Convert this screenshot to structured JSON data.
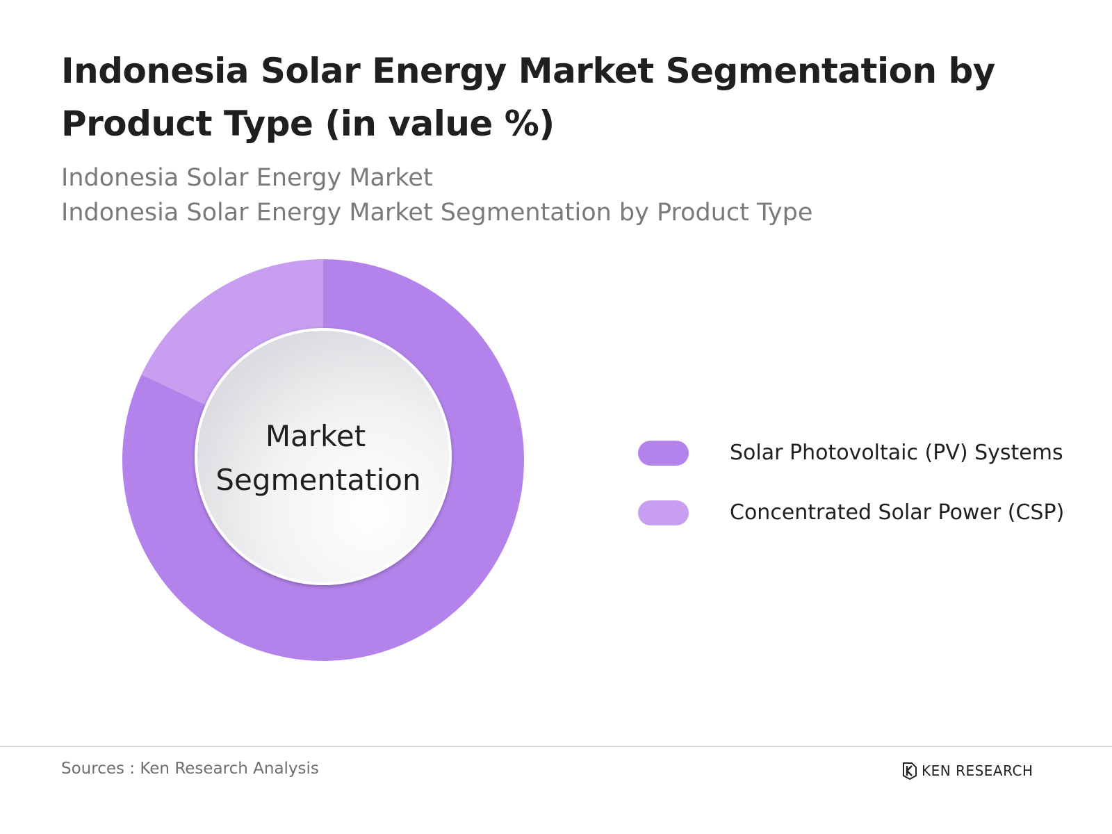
{
  "title": "Indonesia Solar Energy Market Segmentation by Product Type (in value %)",
  "subtitle_line1": "Indonesia Solar Energy Market",
  "subtitle_line2": "Indonesia Solar Energy Market Segmentation by Product Type",
  "center_label_line1": "Market",
  "center_label_line2": "Segmentation",
  "source": "Sources : Ken Research Analysis",
  "brand": "KEN RESEARCH",
  "colors": {
    "pv": "#b383eb",
    "csp": "#c79ef0"
  },
  "chart_data": {
    "type": "pie",
    "style": "donut",
    "categories": [
      "Solar Photovoltaic (PV) Systems",
      "Concentrated Solar Power (CSP)"
    ],
    "values": [
      82,
      18
    ],
    "unit": "%",
    "legend_position": "right",
    "center_label": "Market Segmentation"
  }
}
